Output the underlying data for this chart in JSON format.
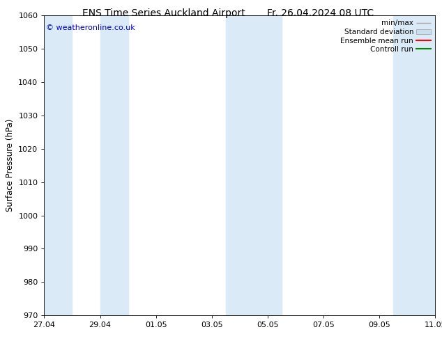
{
  "title": "ENS Time Series Auckland Airport",
  "title_right": "Fr. 26.04.2024 08 UTC",
  "ylabel": "Surface Pressure (hPa)",
  "ymin": 970,
  "ymax": 1060,
  "ytick_step": 10,
  "copyright_text": "© weatheronline.co.uk",
  "copyright_color": "#0000cc",
  "background_color": "#ffffff",
  "plot_bg_color": "#ffffff",
  "band_color": "#daeaf7",
  "x_tick_labels": [
    "27.04",
    "29.04",
    "01.05",
    "03.05",
    "05.05",
    "07.05",
    "09.05",
    "11.05"
  ],
  "x_tick_positions": [
    0,
    2,
    4,
    6,
    8,
    10,
    12,
    14
  ],
  "band_positions": [
    [
      0,
      1
    ],
    [
      3,
      4
    ],
    [
      7,
      8.5
    ],
    [
      10.5,
      14
    ]
  ],
  "legend_labels": [
    "min/max",
    "Standard deviation",
    "Ensemble mean run",
    "Controll run"
  ],
  "legend_minmax_color": "#aaaaaa",
  "legend_std_color": "#c8dff0",
  "legend_ens_color": "#ff0000",
  "legend_ctrl_color": "#008800",
  "title_fontsize": 10,
  "tick_fontsize": 8,
  "ylabel_fontsize": 8.5,
  "legend_fontsize": 7.5
}
